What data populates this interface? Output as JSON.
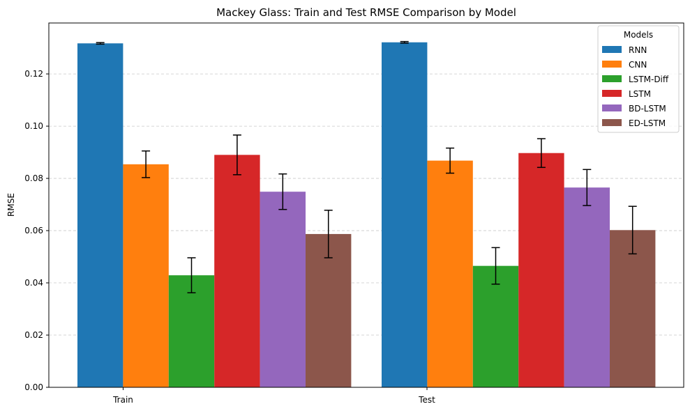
{
  "chart_data": {
    "type": "bar",
    "title": "Mackey Glass: Train and Test RMSE Comparison by Model",
    "xlabel": "",
    "ylabel": "RMSE",
    "categories": [
      "Train",
      "Test"
    ],
    "ylim": [
      0,
      0.1395
    ],
    "yticks": [
      0.0,
      0.02,
      0.04,
      0.06,
      0.08,
      0.1,
      0.12
    ],
    "ytick_labels": [
      "0.00",
      "0.02",
      "0.04",
      "0.06",
      "0.08",
      "0.10",
      "0.12"
    ],
    "grid": "y-dashed",
    "legend": {
      "title": "Models",
      "placement": "top-right"
    },
    "series": [
      {
        "name": "RNN",
        "color": "#1f77b4",
        "values": [
          0.1317,
          0.1321
        ],
        "errors": [
          0.0003,
          0.0003
        ]
      },
      {
        "name": "CNN",
        "color": "#ff7f0e",
        "values": [
          0.0854,
          0.0868
        ],
        "errors": [
          0.0051,
          0.0048
        ]
      },
      {
        "name": "LSTM-Diff",
        "color": "#2ca02c",
        "values": [
          0.0429,
          0.0465
        ],
        "errors": [
          0.0067,
          0.007
        ]
      },
      {
        "name": "LSTM",
        "color": "#d62728",
        "values": [
          0.089,
          0.0897
        ],
        "errors": [
          0.0076,
          0.0055
        ]
      },
      {
        "name": "BD-LSTM",
        "color": "#9467bd",
        "values": [
          0.0749,
          0.0765
        ],
        "errors": [
          0.0068,
          0.0069
        ]
      },
      {
        "name": "ED-LSTM",
        "color": "#8c564b",
        "values": [
          0.0587,
          0.0602
        ],
        "errors": [
          0.0091,
          0.0091
        ]
      }
    ]
  }
}
